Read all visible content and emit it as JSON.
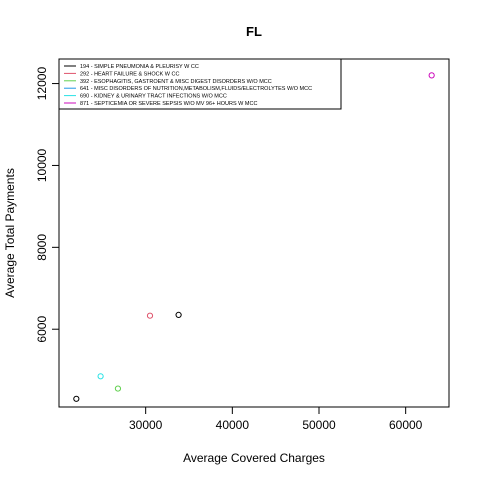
{
  "chart_data": {
    "type": "scatter",
    "title": "FL",
    "xlabel": "Average Covered Charges",
    "ylabel": "Average Total Payments",
    "xlim": [
      20000,
      65000
    ],
    "ylim": [
      4100,
      12600
    ],
    "x_ticks": [
      30000,
      40000,
      50000,
      60000
    ],
    "y_ticks": [
      6000,
      8000,
      10000,
      12000
    ],
    "grid": false,
    "legend_position": "top-left",
    "series": [
      {
        "name": "194 - SIMPLE PNEUMONIA & PLEURISY W CC",
        "color": "#000000",
        "x": [
          22000,
          33800
        ],
        "y": [
          4300,
          6350
        ]
      },
      {
        "name": "292 - HEART FAILURE & SHOCK W CC",
        "color": "#DF536B",
        "x": [
          30500
        ],
        "y": [
          6330
        ]
      },
      {
        "name": "392 - ESOPHAGITIS, GASTROENT & MISC DIGEST DISORDERS W/O MCC",
        "color": "#61D04F",
        "x": [
          26800
        ],
        "y": [
          4550
        ]
      },
      {
        "name": "641 - MISC DISORDERS OF NUTRITION,METABOLISM,FLUIDS/ELECTROLYTES W/O MCC",
        "color": "#2297E6",
        "x": [],
        "y": []
      },
      {
        "name": "690 - KIDNEY & URINARY TRACT INFECTIONS W/O MCC",
        "color": "#28E2E5",
        "x": [
          24800
        ],
        "y": [
          4850
        ]
      },
      {
        "name": "871 - SEPTICEMIA OR SEVERE SEPSIS W/O MV 96+ HOURS W MCC",
        "color": "#CD0BBC",
        "x": [
          63000
        ],
        "y": [
          12200
        ]
      }
    ]
  }
}
